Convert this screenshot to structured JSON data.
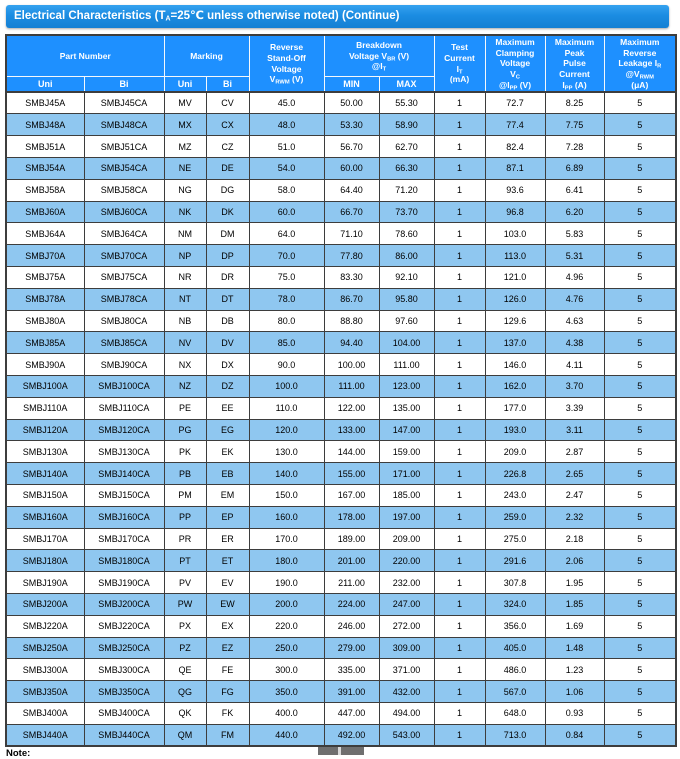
{
  "page": {
    "title": "Electrical Characteristics   (T~A~=25℃  unless otherwise noted) (Continue)",
    "note_label": "Note:"
  },
  "colors": {
    "title_bar_blue": "#1b8ce2",
    "header_blue": "#1e90ff",
    "row_alt_blue": "#8fc7f0",
    "grid_border": "#3d3d3d",
    "scrollbar_gray": "#6f6f6f"
  },
  "table": {
    "header": {
      "part_number": "Part Number",
      "marking": "Marking",
      "reverse_standoff": "Reverse\nStand-Off\nVoltage\nV~RWM~ (V)",
      "breakdown": "Breakdown\nVoltage V~BR~  (V)\n@I~T~",
      "test_current": "Test\nCurrent\nI~T~\n(mA)",
      "max_clamping": "Maximum\nClamping\nVoltage\nV~C~\n@I~PP~ (V)",
      "max_peak_pulse": "Maximum\nPeak\nPulse\nCurrent\nI~PP~ (A)",
      "max_reverse_leakage": "Maximum\nReverse\nLeakage I~R~\n@V~RWM~\n(μA)",
      "sub": [
        "Uni",
        "Bi",
        "Uni",
        "Bi",
        "MIN",
        "MAX"
      ]
    },
    "rows": [
      [
        "SMBJ45A",
        "SMBJ45CA",
        "MV",
        "CV",
        "45.0",
        "50.00",
        "55.30",
        "1",
        "72.7",
        "8.25",
        "5"
      ],
      [
        "SMBJ48A",
        "SMBJ48CA",
        "MX",
        "CX",
        "48.0",
        "53.30",
        "58.90",
        "1",
        "77.4",
        "7.75",
        "5"
      ],
      [
        "SMBJ51A",
        "SMBJ51CA",
        "MZ",
        "CZ",
        "51.0",
        "56.70",
        "62.70",
        "1",
        "82.4",
        "7.28",
        "5"
      ],
      [
        "SMBJ54A",
        "SMBJ54CA",
        "NE",
        "DE",
        "54.0",
        "60.00",
        "66.30",
        "1",
        "87.1",
        "6.89",
        "5"
      ],
      [
        "SMBJ58A",
        "SMBJ58CA",
        "NG",
        "DG",
        "58.0",
        "64.40",
        "71.20",
        "1",
        "93.6",
        "6.41",
        "5"
      ],
      [
        "SMBJ60A",
        "SMBJ60CA",
        "NK",
        "DK",
        "60.0",
        "66.70",
        "73.70",
        "1",
        "96.8",
        "6.20",
        "5"
      ],
      [
        "SMBJ64A",
        "SMBJ64CA",
        "NM",
        "DM",
        "64.0",
        "71.10",
        "78.60",
        "1",
        "103.0",
        "5.83",
        "5"
      ],
      [
        "SMBJ70A",
        "SMBJ70CA",
        "NP",
        "DP",
        "70.0",
        "77.80",
        "86.00",
        "1",
        "113.0",
        "5.31",
        "5"
      ],
      [
        "SMBJ75A",
        "SMBJ75CA",
        "NR",
        "DR",
        "75.0",
        "83.30",
        "92.10",
        "1",
        "121.0",
        "4.96",
        "5"
      ],
      [
        "SMBJ78A",
        "SMBJ78CA",
        "NT",
        "DT",
        "78.0",
        "86.70",
        "95.80",
        "1",
        "126.0",
        "4.76",
        "5"
      ],
      [
        "SMBJ80A",
        "SMBJ80CA",
        "NB",
        "DB",
        "80.0",
        "88.80",
        "97.60",
        "1",
        "129.6",
        "4.63",
        "5"
      ],
      [
        "SMBJ85A",
        "SMBJ85CA",
        "NV",
        "DV",
        "85.0",
        "94.40",
        "104.00",
        "1",
        "137.0",
        "4.38",
        "5"
      ],
      [
        "SMBJ90A",
        "SMBJ90CA",
        "NX",
        "DX",
        "90.0",
        "100.00",
        "111.00",
        "1",
        "146.0",
        "4.11",
        "5"
      ],
      [
        "SMBJ100A",
        "SMBJ100CA",
        "NZ",
        "DZ",
        "100.0",
        "111.00",
        "123.00",
        "1",
        "162.0",
        "3.70",
        "5"
      ],
      [
        "SMBJ110A",
        "SMBJ110CA",
        "PE",
        "EE",
        "110.0",
        "122.00",
        "135.00",
        "1",
        "177.0",
        "3.39",
        "5"
      ],
      [
        "SMBJ120A",
        "SMBJ120CA",
        "PG",
        "EG",
        "120.0",
        "133.00",
        "147.00",
        "1",
        "193.0",
        "3.11",
        "5"
      ],
      [
        "SMBJ130A",
        "SMBJ130CA",
        "PK",
        "EK",
        "130.0",
        "144.00",
        "159.00",
        "1",
        "209.0",
        "2.87",
        "5"
      ],
      [
        "SMBJ140A",
        "SMBJ140CA",
        "PB",
        "EB",
        "140.0",
        "155.00",
        "171.00",
        "1",
        "226.8",
        "2.65",
        "5"
      ],
      [
        "SMBJ150A",
        "SMBJ150CA",
        "PM",
        "EM",
        "150.0",
        "167.00",
        "185.00",
        "1",
        "243.0",
        "2.47",
        "5"
      ],
      [
        "SMBJ160A",
        "SMBJ160CA",
        "PP",
        "EP",
        "160.0",
        "178.00",
        "197.00",
        "1",
        "259.0",
        "2.32",
        "5"
      ],
      [
        "SMBJ170A",
        "SMBJ170CA",
        "PR",
        "ER",
        "170.0",
        "189.00",
        "209.00",
        "1",
        "275.0",
        "2.18",
        "5"
      ],
      [
        "SMBJ180A",
        "SMBJ180CA",
        "PT",
        "ET",
        "180.0",
        "201.00",
        "220.00",
        "1",
        "291.6",
        "2.06",
        "5"
      ],
      [
        "SMBJ190A",
        "SMBJ190CA",
        "PV",
        "EV",
        "190.0",
        "211.00",
        "232.00",
        "1",
        "307.8",
        "1.95",
        "5"
      ],
      [
        "SMBJ200A",
        "SMBJ200CA",
        "PW",
        "EW",
        "200.0",
        "224.00",
        "247.00",
        "1",
        "324.0",
        "1.85",
        "5"
      ],
      [
        "SMBJ220A",
        "SMBJ220CA",
        "PX",
        "EX",
        "220.0",
        "246.00",
        "272.00",
        "1",
        "356.0",
        "1.69",
        "5"
      ],
      [
        "SMBJ250A",
        "SMBJ250CA",
        "PZ",
        "EZ",
        "250.0",
        "279.00",
        "309.00",
        "1",
        "405.0",
        "1.48",
        "5"
      ],
      [
        "SMBJ300A",
        "SMBJ300CA",
        "QE",
        "FE",
        "300.0",
        "335.00",
        "371.00",
        "1",
        "486.0",
        "1.23",
        "5"
      ],
      [
        "SMBJ350A",
        "SMBJ350CA",
        "QG",
        "FG",
        "350.0",
        "391.00",
        "432.00",
        "1",
        "567.0",
        "1.06",
        "5"
      ],
      [
        "SMBJ400A",
        "SMBJ400CA",
        "QK",
        "FK",
        "400.0",
        "447.00",
        "494.00",
        "1",
        "648.0",
        "0.93",
        "5"
      ],
      [
        "SMBJ440A",
        "SMBJ440CA",
        "QM",
        "FM",
        "440.0",
        "492.00",
        "543.00",
        "1",
        "713.0",
        "0.84",
        "5"
      ]
    ]
  }
}
